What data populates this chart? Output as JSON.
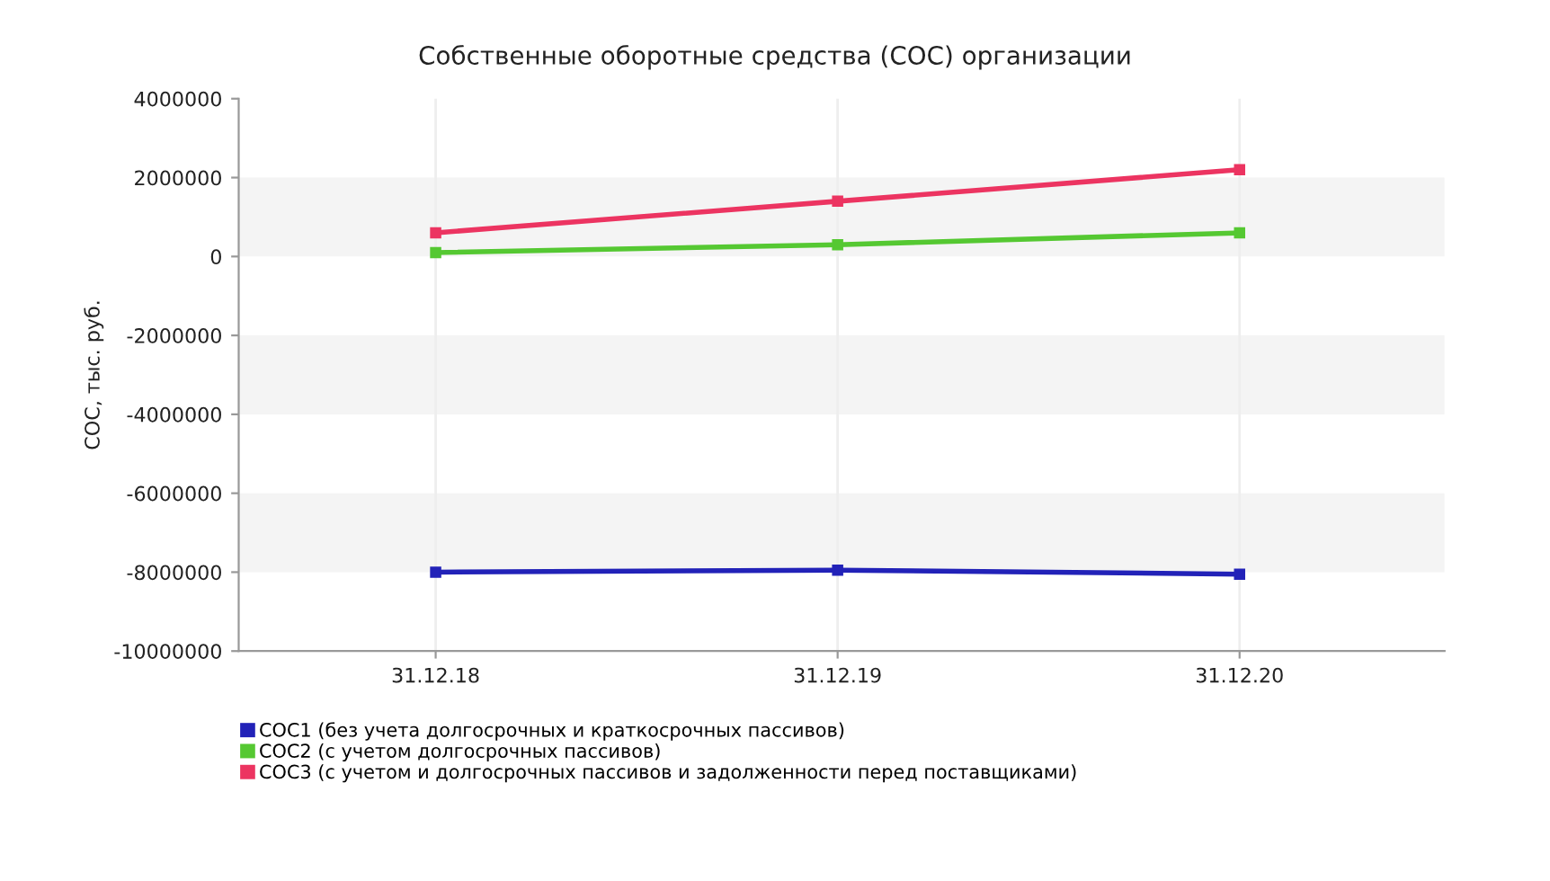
{
  "chart_data": {
    "type": "line",
    "title": "Собственные оборотные средства (СОС) организации",
    "ylabel": "СОС, тыс. руб.",
    "categories": [
      "31.12.18",
      "31.12.19",
      "31.12.20"
    ],
    "series": [
      {
        "name": "СОС1 (без учета долгосрочных и краткосрочных пассивов)",
        "color": "#2222b8",
        "values": [
          -8000000,
          -7950000,
          -8050000
        ]
      },
      {
        "name": "СОС2 (с учетом долгосрочных пассивов)",
        "color": "#55c832",
        "values": [
          100000,
          300000,
          600000
        ]
      },
      {
        "name": "СОС3 (с учетом и долгосрочных пассивов и задолженности перед поставщиками)",
        "color": "#ec3461",
        "values": [
          600000,
          1400000,
          2200000
        ]
      }
    ],
    "ylim": [
      -10000000,
      4000000
    ],
    "yticks": [
      -10000000,
      -8000000,
      -6000000,
      -4000000,
      -2000000,
      0,
      2000000,
      4000000
    ],
    "bands": [
      {
        "axis": "y",
        "from": 0,
        "to": 2000000,
        "color": "#f4f4f4"
      },
      {
        "axis": "y",
        "from": -4000000,
        "to": -2000000,
        "color": "#f4f4f4"
      },
      {
        "axis": "y",
        "from": -8000000,
        "to": -6000000,
        "color": "#f4f4f4"
      }
    ],
    "grid": "x",
    "legend": "bottom left",
    "marker": "square",
    "line_style": "solid"
  }
}
